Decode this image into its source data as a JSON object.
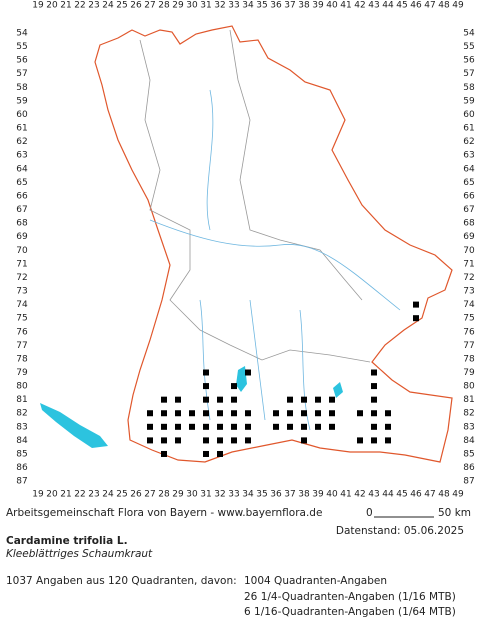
{
  "map": {
    "columns": [
      19,
      20,
      21,
      22,
      23,
      24,
      25,
      26,
      27,
      28,
      29,
      30,
      31,
      32,
      33,
      34,
      35,
      36,
      37,
      38,
      39,
      40,
      41,
      42,
      43,
      44,
      45,
      46,
      47,
      48,
      49
    ],
    "rows": [
      54,
      55,
      56,
      57,
      58,
      59,
      60,
      61,
      62,
      63,
      64,
      65,
      66,
      67,
      68,
      69,
      70,
      71,
      72,
      73,
      74,
      75,
      76,
      77,
      78,
      79,
      80,
      81,
      82,
      83,
      84,
      85,
      86,
      87
    ],
    "records": [
      [
        46,
        74
      ],
      [
        46,
        75
      ],
      [
        31,
        79
      ],
      [
        34,
        79
      ],
      [
        43,
        79
      ],
      [
        31,
        80
      ],
      [
        33,
        80
      ],
      [
        43,
        80
      ],
      [
        28,
        81
      ],
      [
        29,
        81
      ],
      [
        31,
        81
      ],
      [
        32,
        81
      ],
      [
        33,
        81
      ],
      [
        37,
        81
      ],
      [
        38,
        81
      ],
      [
        39,
        81
      ],
      [
        40,
        81
      ],
      [
        43,
        81
      ],
      [
        27,
        82
      ],
      [
        28,
        82
      ],
      [
        29,
        82
      ],
      [
        30,
        82
      ],
      [
        31,
        82
      ],
      [
        32,
        82
      ],
      [
        33,
        82
      ],
      [
        34,
        82
      ],
      [
        36,
        82
      ],
      [
        37,
        82
      ],
      [
        38,
        82
      ],
      [
        39,
        82
      ],
      [
        40,
        82
      ],
      [
        42,
        82
      ],
      [
        43,
        82
      ],
      [
        44,
        82
      ],
      [
        27,
        83
      ],
      [
        28,
        83
      ],
      [
        29,
        83
      ],
      [
        30,
        83
      ],
      [
        31,
        83
      ],
      [
        32,
        83
      ],
      [
        33,
        83
      ],
      [
        34,
        83
      ],
      [
        36,
        83
      ],
      [
        37,
        83
      ],
      [
        38,
        83
      ],
      [
        39,
        83
      ],
      [
        40,
        83
      ],
      [
        43,
        83
      ],
      [
        44,
        83
      ],
      [
        27,
        84
      ],
      [
        28,
        84
      ],
      [
        29,
        84
      ],
      [
        31,
        84
      ],
      [
        32,
        84
      ],
      [
        33,
        84
      ],
      [
        34,
        84
      ],
      [
        38,
        84
      ],
      [
        42,
        84
      ],
      [
        43,
        84
      ],
      [
        44,
        84
      ],
      [
        28,
        85
      ],
      [
        31,
        85
      ],
      [
        32,
        85
      ]
    ]
  },
  "footer": {
    "credit": "Arbeitsgemeinschaft Flora von Bayern - www.bayernflora.de",
    "scale_start": "0",
    "scale_end": "50 km",
    "date": "Datenstand: 05.06.2025",
    "species": "Cardamine trifolia L.",
    "common_name": "Kleeblättriges Schaumkraut",
    "summary": "1037 Angaben aus 120 Quadranten, davon:",
    "detail_1": "1004 Quadranten-Angaben",
    "detail_2": "26 1/4-Quadranten-Angaben (1/16 MTB)",
    "detail_3": "6 1/16-Quadranten-Angaben (1/64 MTB)"
  }
}
